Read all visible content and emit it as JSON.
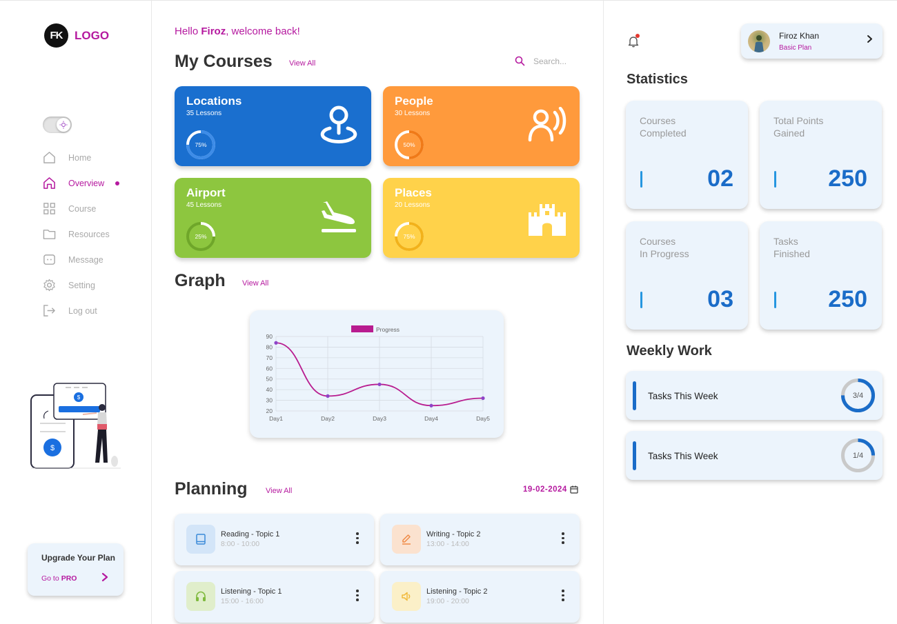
{
  "logo": {
    "mark": "FK",
    "text": "LOGO"
  },
  "nav": {
    "items": [
      {
        "label": "Home"
      },
      {
        "label": "Overview"
      },
      {
        "label": "Course"
      },
      {
        "label": "Resources"
      },
      {
        "label": "Message"
      },
      {
        "label": "Setting"
      },
      {
        "label": "Log out"
      }
    ],
    "active_index": 1
  },
  "upgrade": {
    "title": "Upgrade Your Plan",
    "link_prefix": "Go to",
    "link_strong": "PRO"
  },
  "greeting": {
    "prefix": "Hello ",
    "name": "Firoz",
    "suffix": ", welcome back!"
  },
  "courses": {
    "title": "My Courses",
    "view_all": "View All",
    "search_placeholder": "Search...",
    "items": [
      {
        "title": "Locations",
        "lessons": "35 Lessons",
        "percent_label": "75%",
        "progress": 0.75,
        "color": "#1a6fcf",
        "icon": "location-pin-icon"
      },
      {
        "title": "People",
        "lessons": "30 Lessons",
        "percent_label": "50%",
        "progress": 0.5,
        "color": "#ff9a3c",
        "icon": "person-speaking-icon"
      },
      {
        "title": "Airport",
        "lessons": "45 Lessons",
        "percent_label": "25%",
        "progress": 0.25,
        "color": "#8dc63f",
        "icon": "airplane-landing-icon"
      },
      {
        "title": "Places",
        "lessons": "20 Lessons",
        "percent_label": "75%",
        "progress": 0.75,
        "color": "#ffd24a",
        "icon": "castle-icon"
      }
    ]
  },
  "graph": {
    "title": "Graph",
    "view_all": "View All"
  },
  "chart_data": {
    "type": "line",
    "categories": [
      "Day1",
      "Day2",
      "Day3",
      "Day4",
      "Day5"
    ],
    "series": [
      {
        "name": "Progress",
        "values": [
          84,
          34,
          45,
          25,
          32
        ],
        "color": "#b81c8f"
      }
    ],
    "yticks": [
      "20",
      "30",
      "40",
      "50",
      "60",
      "70",
      "80",
      "90"
    ],
    "ylim": [
      20,
      90
    ],
    "grid": true,
    "legend": "top"
  },
  "planning": {
    "title": "Planning",
    "view_all": "View All",
    "date": "19-02-2024",
    "items": [
      {
        "title": "Reading - Topic 1",
        "time": "8:00 - 10:00",
        "icon": "book-icon",
        "icon_bg": "#d3e5f8",
        "icon_color": "#3a8ad8"
      },
      {
        "title": "Writing - Topic 2",
        "time": "13:00 - 14:00",
        "icon": "pencil-icon",
        "icon_bg": "#fbe2cf",
        "icon_color": "#f08a45"
      },
      {
        "title": "Listening - Topic 1",
        "time": "15:00 - 16:00",
        "icon": "headphones-icon",
        "icon_bg": "#e0eecb",
        "icon_color": "#7fba3e"
      },
      {
        "title": "Listening - Topic 2",
        "time": "19:00 - 20:00",
        "icon": "speaker-icon",
        "icon_bg": "#fbf0c8",
        "icon_color": "#f1b93a"
      }
    ]
  },
  "profile": {
    "name": "Firoz Khan",
    "plan": "Basic Plan"
  },
  "statistics": {
    "title": "Statistics",
    "items": [
      {
        "line1": "Courses",
        "line2": "Completed",
        "value": "02"
      },
      {
        "line1": "Total Points",
        "line2": "Gained",
        "value": "250"
      },
      {
        "line1": "Courses",
        "line2": "In Progress",
        "value": "03"
      },
      {
        "line1": "Tasks",
        "line2": "Finished",
        "value": "250"
      }
    ]
  },
  "weekly": {
    "title": "Weekly Work",
    "items": [
      {
        "label": "Tasks This Week",
        "count": "3/4",
        "progress": 0.75
      },
      {
        "label": "Tasks This Week",
        "count": "1/4",
        "progress": 0.25
      }
    ]
  },
  "colors": {
    "accent": "#b5199f",
    "blue": "#1a6cc8",
    "card_bg": "#ecf4fc"
  }
}
